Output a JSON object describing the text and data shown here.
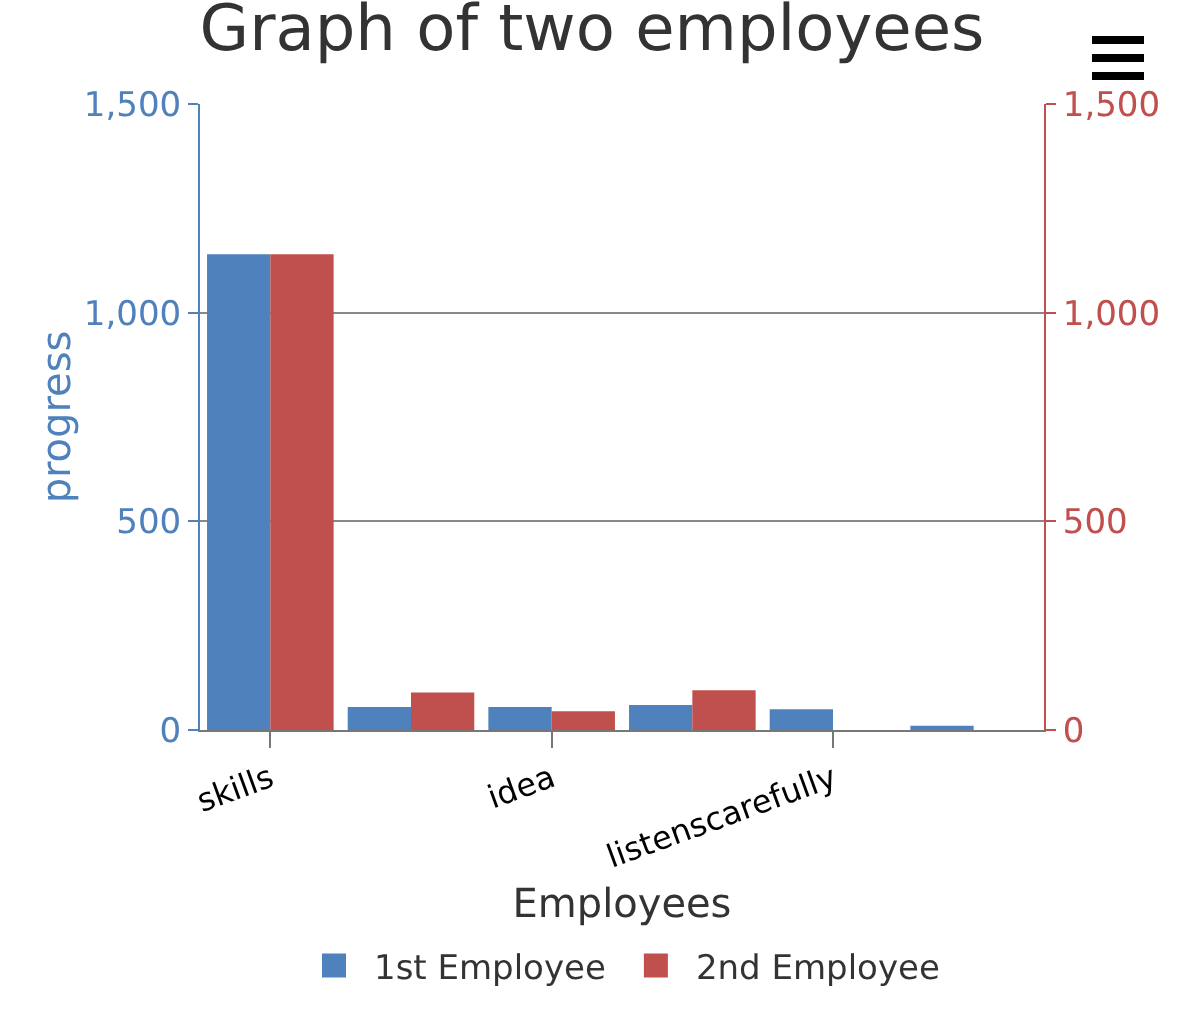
{
  "chart_data": {
    "type": "bar",
    "title": "Graph of two employees",
    "xlabel": "Employees",
    "ylabel": "progress",
    "categories": [
      "skills",
      null,
      "idea",
      null,
      "listenscarefully",
      null
    ],
    "series": [
      {
        "name": "1st Employee",
        "color": "#4f81bc",
        "values": [
          1140,
          55,
          55,
          60,
          50,
          10
        ]
      },
      {
        "name": "2nd Employee",
        "color": "#c0504e",
        "values": [
          1140,
          90,
          45,
          95,
          0,
          0
        ],
        "axis": "y2"
      }
    ],
    "ylim": [
      0,
      1500
    ],
    "yticks": [
      {
        "value": 0,
        "label": "0"
      },
      {
        "value": 500,
        "label": "500"
      },
      {
        "value": 1000,
        "label": "1,000"
      },
      {
        "value": 1500,
        "label": "1,500"
      }
    ],
    "y2lim": [
      0,
      1500
    ],
    "y2ticks": [
      {
        "value": 0,
        "label": "0"
      },
      {
        "value": 500,
        "label": "500"
      },
      {
        "value": 1000,
        "label": "1,000"
      },
      {
        "value": 1500,
        "label": "1,500"
      }
    ],
    "grid": "y",
    "legend": "bottom"
  }
}
